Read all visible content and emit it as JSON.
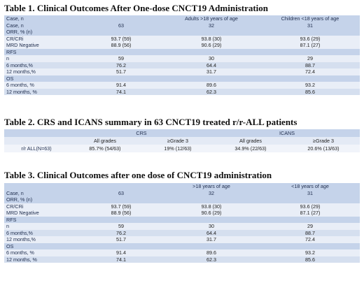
{
  "table1": {
    "title": "Table 1.  Clinical Outcomes After One-dose CNCT19 Administration",
    "header": [
      "Case, n",
      "",
      "Adults >18 years of age",
      "Children <18 years of age"
    ],
    "rows": [
      {
        "cells": [
          "Case, n",
          "63",
          "32",
          "31"
        ],
        "kind": "lbl"
      },
      {
        "cells": [
          "ORR, % (n)",
          "",
          "",
          ""
        ],
        "kind": "lbl"
      },
      {
        "cells": [
          "CR/CRi",
          "93.7 (59)",
          "93.8 (30)",
          "93.6 (29)"
        ],
        "kind": "odd"
      },
      {
        "cells": [
          "MRD Negative",
          "88.9 (56)",
          "90.6 (29)",
          "87.1 (27)"
        ],
        "kind": "odd"
      },
      {
        "cells": [
          "RFS",
          "",
          "",
          ""
        ],
        "kind": "lbl"
      },
      {
        "cells": [
          "n",
          "59",
          "30",
          "29"
        ],
        "kind": "odd"
      },
      {
        "cells": [
          "6 months,%",
          "76.2",
          "64.4",
          "88.7"
        ],
        "kind": "even"
      },
      {
        "cells": [
          "12 months,%",
          "51.7",
          "31.7",
          "72.4"
        ],
        "kind": "odd"
      },
      {
        "cells": [
          "OS",
          "",
          "",
          ""
        ],
        "kind": "lbl"
      },
      {
        "cells": [
          "6 months, %",
          "91.4",
          "89.6",
          "93.2"
        ],
        "kind": "odd"
      },
      {
        "cells": [
          "12 months, %",
          "74.1",
          "62.3",
          "85.6"
        ],
        "kind": "even"
      }
    ]
  },
  "table2": {
    "title": "Table 2.  CRS and ICANS summary in 63 CNCT19 treated r/r-ALL patients",
    "groups": [
      "CRS",
      "ICANS"
    ],
    "subheads": [
      "All grades",
      "≥Grade 3",
      "All grades",
      "≥Grade 3"
    ],
    "row_label": "r/r ALL(N=63)",
    "values": [
      "85.7% (54/63)",
      "19% (12/63)",
      "34.9% (22/63)",
      "20.6% (13/63)"
    ]
  },
  "table3": {
    "title": "Table 3.  Clinical Outcomes after one dose of CNCT19 administration",
    "header": [
      "",
      "",
      ">18 years of age",
      "<18 years of age"
    ],
    "rows": [
      {
        "cells": [
          "Case, n",
          "63",
          "32",
          "31"
        ],
        "kind": "lbl"
      },
      {
        "cells": [
          "ORR, % (n)",
          "",
          "",
          ""
        ],
        "kind": "lbl"
      },
      {
        "cells": [
          "CR/CRi",
          "93.7 (59)",
          "93.8 (30)",
          "93.6 (29)"
        ],
        "kind": "odd"
      },
      {
        "cells": [
          "MRD Negative",
          "88.9 (56)",
          "90.6 (29)",
          "87.1 (27)"
        ],
        "kind": "odd"
      },
      {
        "cells": [
          "RFS",
          "",
          "",
          ""
        ],
        "kind": "lbl"
      },
      {
        "cells": [
          "n",
          "59",
          "30",
          "29"
        ],
        "kind": "odd"
      },
      {
        "cells": [
          "6 months,%",
          "76.2",
          "64.4",
          "88.7"
        ],
        "kind": "even"
      },
      {
        "cells": [
          "12 months,%",
          "51.7",
          "31.7",
          "72.4"
        ],
        "kind": "odd"
      },
      {
        "cells": [
          "OS",
          "",
          "",
          ""
        ],
        "kind": "lbl"
      },
      {
        "cells": [
          "6 months, %",
          "91.4",
          "89.6",
          "93.2"
        ],
        "kind": "odd"
      },
      {
        "cells": [
          "12 months, %",
          "74.1",
          "62.3",
          "85.6"
        ],
        "kind": "even"
      }
    ]
  },
  "colors": {
    "header_fill": "#c5d3ea",
    "row_light": "#e9eef7",
    "row_mid": "#d5dfef",
    "text_dark": "#1f2d4d"
  }
}
